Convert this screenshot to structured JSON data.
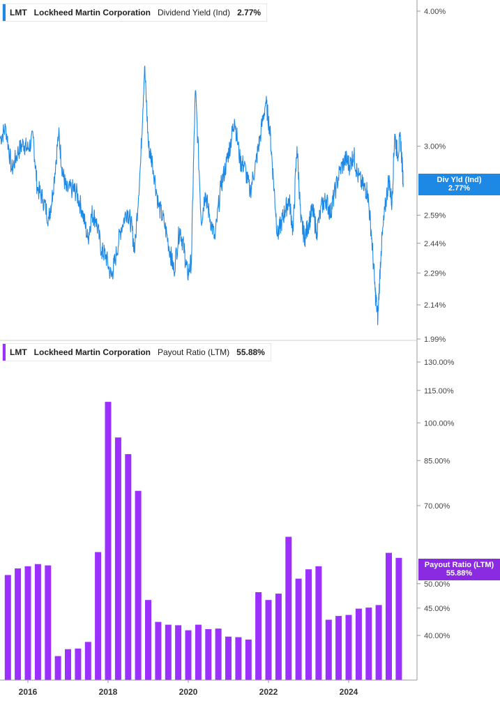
{
  "colors": {
    "yield_line": "#1e88e5",
    "payout_bar": "#9b30ff",
    "payout_badge": "#8a2be2",
    "yield_badge": "#1e88e5",
    "axis": "#999999"
  },
  "panels": [
    {
      "ticker": "LMT",
      "company": "Lockheed Martin Corporation",
      "metric": "Dividend Yield (Ind)",
      "value": "2.77%",
      "badge_label": "Div Yld (Ind)",
      "badge_value": "2.77%"
    },
    {
      "ticker": "LMT",
      "company": "Lockheed Martin Corporation",
      "metric": "Payout Ratio (LTM)",
      "value": "55.88%",
      "badge_label": "Payout Ratio (LTM)",
      "badge_value": "55.88%"
    }
  ],
  "chart_data": [
    {
      "type": "line",
      "title": "Dividend Yield (Ind)",
      "series_name": "Dividend Yield (Ind)",
      "y_scale": "log",
      "ylim": [
        1.99,
        4.0
      ],
      "y_ticks": [
        "4.00%",
        "3.00%",
        "2.59%",
        "2.44%",
        "2.29%",
        "2.14%",
        "1.99%"
      ],
      "y_tick_values": [
        4.0,
        3.0,
        2.59,
        2.44,
        2.29,
        2.14,
        1.99
      ],
      "xlim": [
        2015.25,
        2025.6
      ],
      "points": [
        [
          2015.25,
          3.05
        ],
        [
          2015.4,
          3.12
        ],
        [
          2015.55,
          2.85
        ],
        [
          2015.7,
          2.96
        ],
        [
          2015.85,
          3.02
        ],
        [
          2015.95,
          2.98
        ],
        [
          2016.1,
          3.05
        ],
        [
          2016.2,
          2.75
        ],
        [
          2016.35,
          2.68
        ],
        [
          2016.5,
          2.57
        ],
        [
          2016.6,
          2.72
        ],
        [
          2016.75,
          3.08
        ],
        [
          2016.85,
          2.84
        ],
        [
          2016.95,
          2.73
        ],
        [
          2017.1,
          2.74
        ],
        [
          2017.2,
          2.72
        ],
        [
          2017.35,
          2.62
        ],
        [
          2017.5,
          2.46
        ],
        [
          2017.6,
          2.6
        ],
        [
          2017.7,
          2.57
        ],
        [
          2017.85,
          2.4
        ],
        [
          2017.95,
          2.38
        ],
        [
          2018.1,
          2.27
        ],
        [
          2018.2,
          2.36
        ],
        [
          2018.35,
          2.52
        ],
        [
          2018.5,
          2.62
        ],
        [
          2018.6,
          2.55
        ],
        [
          2018.7,
          2.4
        ],
        [
          2018.85,
          2.9
        ],
        [
          2018.95,
          3.55
        ],
        [
          2019.05,
          3.0
        ],
        [
          2019.15,
          2.9
        ],
        [
          2019.3,
          2.65
        ],
        [
          2019.45,
          2.55
        ],
        [
          2019.6,
          2.4
        ],
        [
          2019.7,
          2.3
        ],
        [
          2019.85,
          2.52
        ],
        [
          2019.95,
          2.42
        ],
        [
          2020.05,
          2.28
        ],
        [
          2020.15,
          2.35
        ],
        [
          2020.25,
          3.38
        ],
        [
          2020.4,
          2.55
        ],
        [
          2020.5,
          2.72
        ],
        [
          2020.6,
          2.6
        ],
        [
          2020.75,
          2.46
        ],
        [
          2020.9,
          2.75
        ],
        [
          2021.05,
          2.9
        ],
        [
          2021.15,
          3.02
        ],
        [
          2021.25,
          3.18
        ],
        [
          2021.4,
          2.9
        ],
        [
          2021.5,
          2.88
        ],
        [
          2021.65,
          2.72
        ],
        [
          2021.8,
          2.9
        ],
        [
          2021.9,
          3.05
        ],
        [
          2022.05,
          3.3
        ],
        [
          2022.15,
          3.12
        ],
        [
          2022.25,
          2.78
        ],
        [
          2022.35,
          2.48
        ],
        [
          2022.45,
          2.55
        ],
        [
          2022.55,
          2.62
        ],
        [
          2022.65,
          2.68
        ],
        [
          2022.75,
          2.5
        ],
        [
          2022.85,
          3.0
        ],
        [
          2022.95,
          2.55
        ],
        [
          2023.05,
          2.47
        ],
        [
          2023.15,
          2.55
        ],
        [
          2023.25,
          2.62
        ],
        [
          2023.35,
          2.5
        ],
        [
          2023.5,
          2.65
        ],
        [
          2023.6,
          2.68
        ],
        [
          2023.7,
          2.6
        ],
        [
          2023.8,
          2.7
        ],
        [
          2023.95,
          2.85
        ],
        [
          2024.1,
          2.92
        ],
        [
          2024.2,
          2.88
        ],
        [
          2024.3,
          2.95
        ],
        [
          2024.4,
          2.82
        ],
        [
          2024.55,
          2.75
        ],
        [
          2024.65,
          2.73
        ],
        [
          2024.75,
          2.5
        ],
        [
          2024.85,
          2.2
        ],
        [
          2024.92,
          2.08
        ],
        [
          2025.0,
          2.4
        ],
        [
          2025.1,
          2.62
        ],
        [
          2025.2,
          2.8
        ],
        [
          2025.28,
          2.65
        ],
        [
          2025.35,
          3.08
        ],
        [
          2025.42,
          2.95
        ],
        [
          2025.5,
          3.05
        ],
        [
          2025.57,
          2.77
        ]
      ]
    },
    {
      "type": "bar",
      "title": "Payout Ratio (LTM)",
      "series_name": "Payout Ratio (LTM)",
      "y_scale": "log",
      "ylim": [
        33.0,
        130.0
      ],
      "y_ticks": [
        "130.00%",
        "115.00%",
        "100.00%",
        "85.00%",
        "70.00%",
        "50.00%",
        "45.00%",
        "40.00%"
      ],
      "y_tick_values": [
        130,
        115,
        100,
        85,
        70,
        50,
        45,
        40
      ],
      "xlim": [
        2015.4,
        2025.6
      ],
      "x_ticks": [
        "2016",
        "2018",
        "2020",
        "2022",
        "2024"
      ],
      "x_tick_values": [
        2016,
        2018,
        2020,
        2022,
        2024
      ],
      "bar_x": [
        2015.5,
        2015.75,
        2016.0,
        2016.25,
        2016.5,
        2016.75,
        2017.0,
        2017.25,
        2017.5,
        2017.75,
        2018.0,
        2018.25,
        2018.5,
        2018.75,
        2019.0,
        2019.25,
        2019.5,
        2019.75,
        2020.0,
        2020.25,
        2020.5,
        2020.75,
        2021.0,
        2021.25,
        2021.5,
        2021.75,
        2022.0,
        2022.25,
        2022.5,
        2022.75,
        2023.0,
        2023.25,
        2023.5,
        2023.75,
        2024.0,
        2024.25,
        2024.5,
        2024.75,
        2025.0,
        2025.25
      ],
      "values": [
        51.9,
        53.4,
        53.9,
        54.4,
        54.1,
        36.6,
        37.7,
        37.8,
        38.9,
        57.3,
        109.5,
        93.9,
        87.4,
        74.6,
        46.6,
        42.4,
        41.9,
        41.8,
        40.9,
        41.9,
        41.1,
        41.2,
        39.8,
        39.7,
        39.3,
        48.2,
        46.6,
        47.9,
        61.2,
        51.1,
        53.2,
        53.9,
        42.8,
        43.5,
        43.7,
        44.9,
        45.1,
        45.6,
        57.1,
        55.88
      ]
    }
  ]
}
